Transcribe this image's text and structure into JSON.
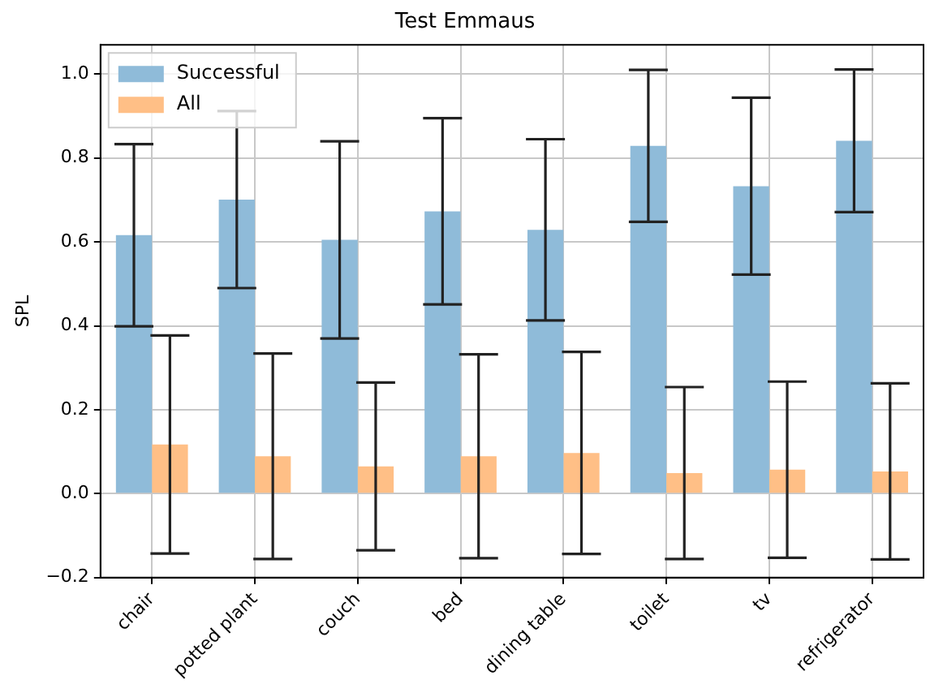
{
  "chart_data": {
    "type": "bar",
    "title": "Test Emmaus",
    "ylabel": "SPL",
    "categories": [
      "chair",
      "potted plant",
      "couch",
      "bed",
      "dining table",
      "toilet",
      "tv",
      "refrigerator"
    ],
    "series": [
      {
        "name": "Successful",
        "color": "#8fbbd9",
        "values": [
          0.616,
          0.701,
          0.605,
          0.673,
          0.629,
          0.829,
          0.733,
          0.841
        ],
        "errors": [
          0.217,
          0.211,
          0.235,
          0.222,
          0.216,
          0.181,
          0.211,
          0.17
        ]
      },
      {
        "name": "All",
        "color": "#ffbf86",
        "values": [
          0.117,
          0.089,
          0.065,
          0.089,
          0.097,
          0.049,
          0.057,
          0.053
        ],
        "errors": [
          0.26,
          0.245,
          0.2,
          0.243,
          0.241,
          0.205,
          0.21,
          0.21
        ]
      }
    ],
    "ylim": [
      -0.2,
      1.07
    ],
    "yticks": [
      {
        "value": -0.2,
        "label": "−0.2"
      },
      {
        "value": 0,
        "label": "0.0"
      },
      {
        "value": 0.2,
        "label": "0.2"
      },
      {
        "value": 0.4,
        "label": "0.4"
      },
      {
        "value": 0.6,
        "label": "0.6"
      },
      {
        "value": 0.8,
        "label": "0.8"
      },
      {
        "value": 1,
        "label": "1.0"
      }
    ],
    "grid": true,
    "legend": "top left"
  }
}
